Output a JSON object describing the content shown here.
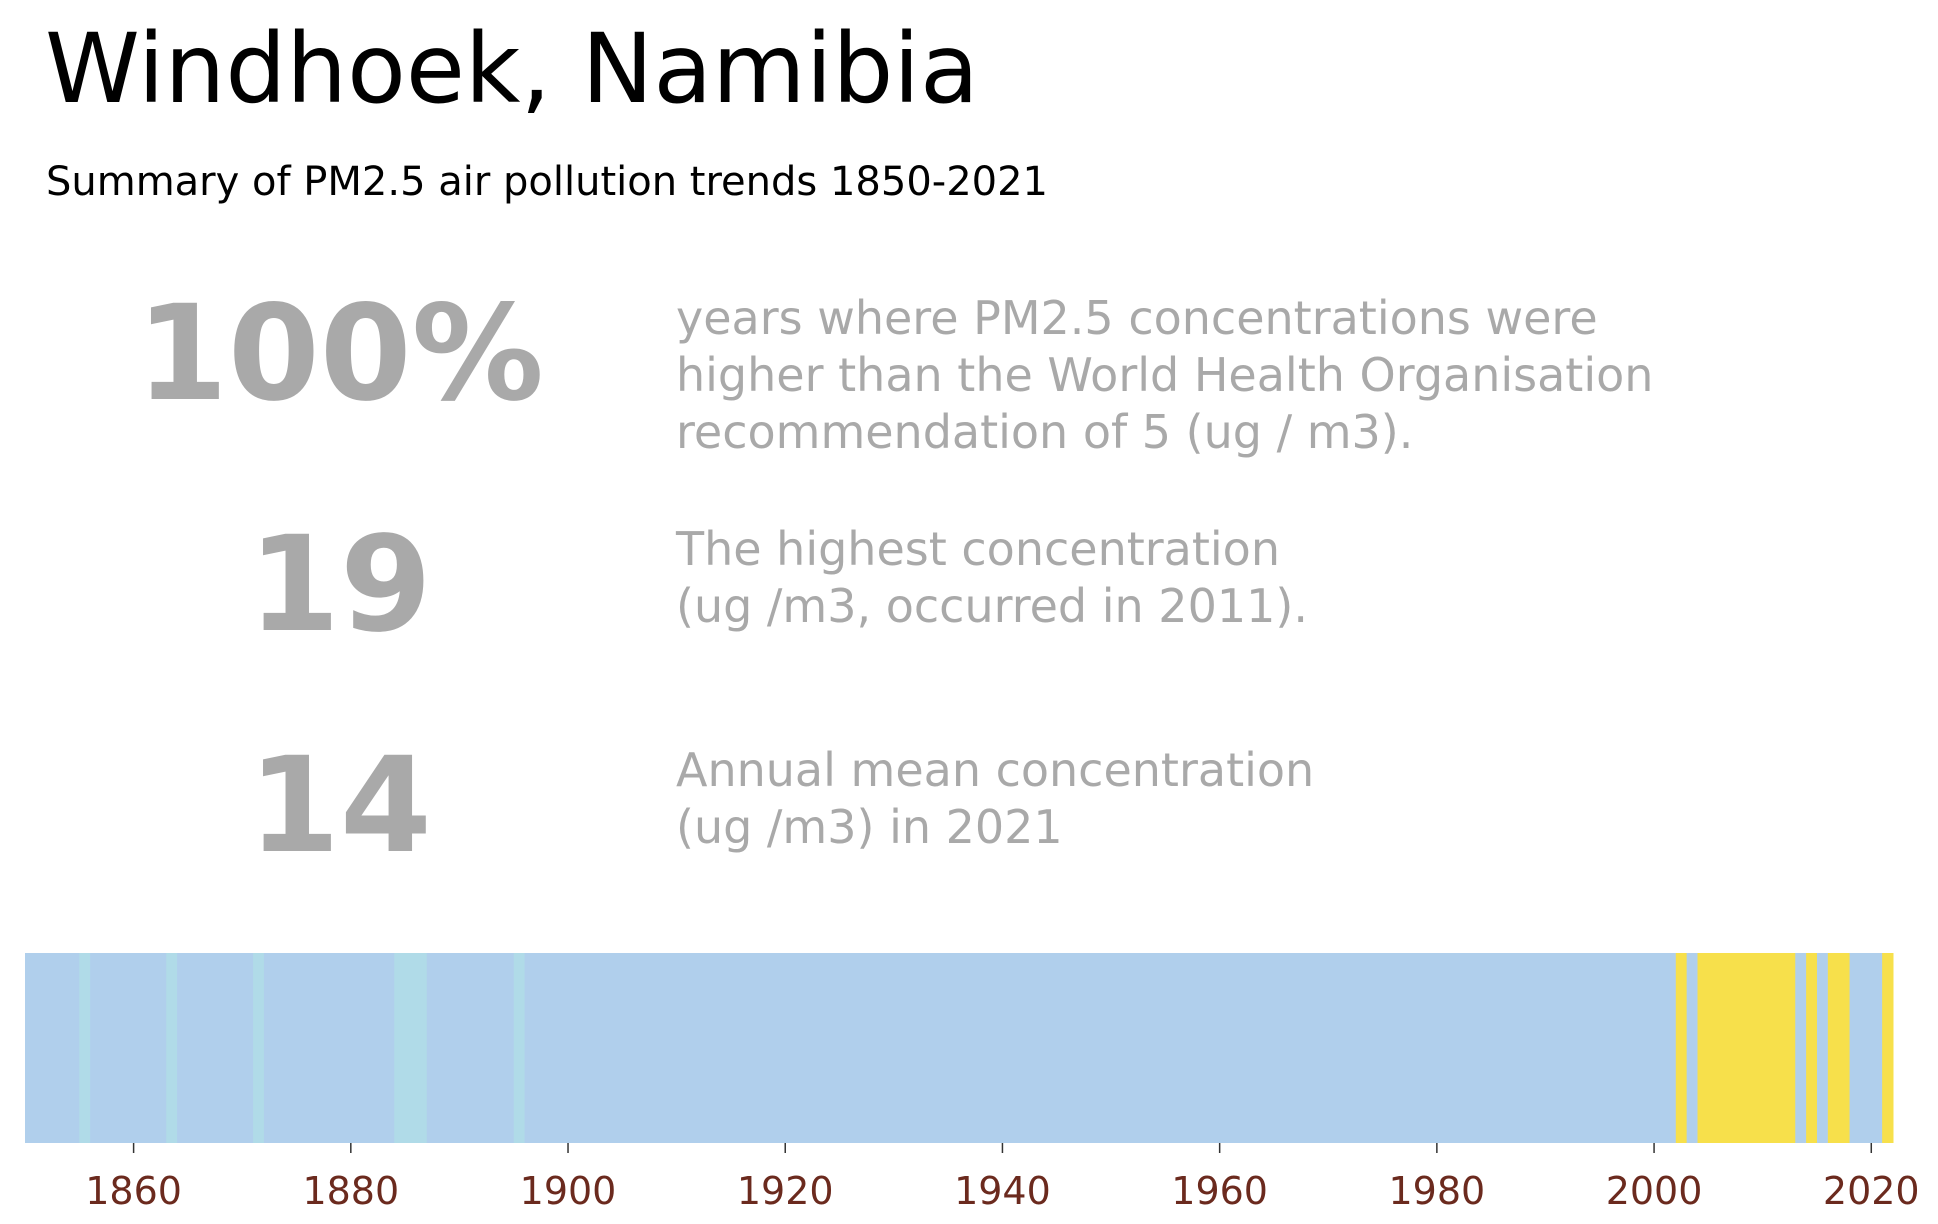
{
  "title": "Windhoek, Namibia",
  "subtitle": "Summary of PM2.5 air pollution trends 1850-2021",
  "stats": [
    {
      "value": "100%",
      "lines": [
        "years where PM2.5 concentrations were",
        "higher than the World Health Organisation",
        "recommendation of 5 (ug / m3)."
      ]
    },
    {
      "value": "19",
      "lines": [
        "The highest concentration",
        "(ug /m3, occurred in 2011)."
      ]
    },
    {
      "value": "14",
      "lines": [
        "Annual mean concentration",
        "(ug /m3) in 2021"
      ]
    }
  ],
  "colors": {
    "stat_text": "#a9a9a9",
    "tick_label": "#6b2a1e",
    "stripe_base": "#b0cfec",
    "stripe_light": "#b0dbe8",
    "stripe_high": "#f7e04b"
  },
  "chart_data": {
    "type": "heatmap",
    "title": "",
    "xlabel": "",
    "ylabel": "",
    "xlim": [
      1850,
      2022
    ],
    "x_ticks": [
      "1860",
      "1880",
      "1900",
      "1920",
      "1940",
      "1960",
      "1980",
      "2000",
      "2020"
    ],
    "grid": false,
    "legend": "none",
    "stripes": [
      {
        "start": 1850,
        "end": 1855,
        "category": "base"
      },
      {
        "start": 1855,
        "end": 1856,
        "category": "light"
      },
      {
        "start": 1856,
        "end": 1863,
        "category": "base"
      },
      {
        "start": 1863,
        "end": 1864,
        "category": "light"
      },
      {
        "start": 1864,
        "end": 1871,
        "category": "base"
      },
      {
        "start": 1871,
        "end": 1872,
        "category": "light"
      },
      {
        "start": 1872,
        "end": 1884,
        "category": "base"
      },
      {
        "start": 1884,
        "end": 1887,
        "category": "light"
      },
      {
        "start": 1887,
        "end": 1895,
        "category": "base"
      },
      {
        "start": 1895,
        "end": 1896,
        "category": "light"
      },
      {
        "start": 1896,
        "end": 2002,
        "category": "base"
      },
      {
        "start": 2002,
        "end": 2003,
        "category": "high"
      },
      {
        "start": 2003,
        "end": 2004,
        "category": "base"
      },
      {
        "start": 2004,
        "end": 2013,
        "category": "high"
      },
      {
        "start": 2013,
        "end": 2014,
        "category": "base"
      },
      {
        "start": 2014,
        "end": 2015,
        "category": "high"
      },
      {
        "start": 2015,
        "end": 2016,
        "category": "base"
      },
      {
        "start": 2016,
        "end": 2018,
        "category": "high"
      },
      {
        "start": 2018,
        "end": 2021,
        "category": "base"
      },
      {
        "start": 2021,
        "end": 2022,
        "category": "high"
      }
    ]
  }
}
